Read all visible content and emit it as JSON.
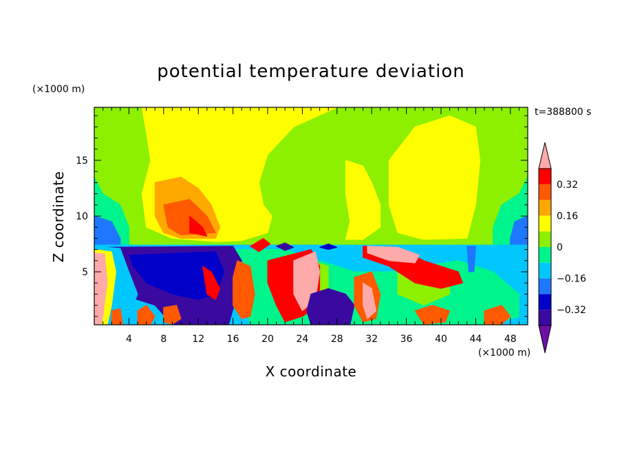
{
  "chart_data": {
    "type": "heatmap",
    "title": "potential temperature deviation",
    "xlabel": "X coordinate",
    "ylabel": "Z coordinate",
    "x_unit": "(×1000 m)",
    "y_unit": "(×1000 m)",
    "time_label": "t=388800 s",
    "xlim": [
      0,
      50
    ],
    "ylim": [
      0.25,
      19.75
    ],
    "x_ticks": [
      4,
      8,
      12,
      16,
      20,
      24,
      28,
      32,
      36,
      40,
      44,
      48
    ],
    "y_ticks": [
      5,
      10,
      15
    ],
    "levels": [
      -0.4,
      -0.32,
      -0.24,
      -0.16,
      -0.08,
      0,
      0.08,
      0.16,
      0.24,
      0.32,
      0.4
    ],
    "colorbar_labels": [
      "0.32",
      "0.16",
      "0",
      "−0.16",
      "−0.32"
    ],
    "colorbar_label_values": [
      0.32,
      0.16,
      0,
      -0.16,
      -0.32
    ],
    "colors": {
      "below": "#6e0fa8",
      "bands": [
        "#3a0aa0",
        "#0000c8",
        "#1e78ff",
        "#00c8ff",
        "#00f48c",
        "#8cf000",
        "#ffff00",
        "#ffa800",
        "#ff5a00",
        "#ff0000"
      ],
      "above": "#ffaaaa"
    },
    "regions": [
      {
        "value": 0.04,
        "points": [
          [
            0,
            19.75
          ],
          [
            50,
            19.75
          ],
          [
            50,
            7.3
          ],
          [
            0,
            7.3
          ]
        ]
      },
      {
        "value": 0.12,
        "points": [
          [
            5.5,
            19.75
          ],
          [
            28,
            19.75
          ],
          [
            23,
            18
          ],
          [
            20,
            15.5
          ],
          [
            19,
            13
          ],
          [
            19.5,
            11
          ],
          [
            20.5,
            10
          ],
          [
            20,
            8.5
          ],
          [
            17,
            7.8
          ],
          [
            14,
            7.7
          ],
          [
            9,
            8
          ],
          [
            6,
            9
          ],
          [
            5.5,
            12
          ],
          [
            6.5,
            15
          ],
          [
            6,
            17.5
          ]
        ]
      },
      {
        "value": 0.12,
        "points": [
          [
            29,
            15
          ],
          [
            31,
            14.5
          ],
          [
            32,
            13
          ],
          [
            33,
            11
          ],
          [
            33,
            9
          ],
          [
            31,
            7.9
          ],
          [
            29,
            7.9
          ],
          [
            29.5,
            9.5
          ],
          [
            29,
            12
          ]
        ]
      },
      {
        "value": 0.12,
        "points": [
          [
            34,
            15
          ],
          [
            37,
            18
          ],
          [
            41,
            19
          ],
          [
            44,
            18
          ],
          [
            44.5,
            15
          ],
          [
            44,
            11
          ],
          [
            43,
            8
          ],
          [
            38,
            7.9
          ],
          [
            35,
            8.5
          ],
          [
            34,
            11
          ]
        ]
      },
      {
        "value": 0.2,
        "points": [
          [
            7,
            13
          ],
          [
            10,
            13.5
          ],
          [
            12,
            12.5
          ],
          [
            13.5,
            11
          ],
          [
            14.5,
            9
          ],
          [
            14,
            8
          ],
          [
            10,
            8
          ],
          [
            8,
            8.5
          ],
          [
            7,
            10
          ]
        ]
      },
      {
        "value": 0.28,
        "points": [
          [
            8,
            11
          ],
          [
            11,
            11.5
          ],
          [
            13,
            10
          ],
          [
            14,
            8.5
          ],
          [
            10,
            8.3
          ],
          [
            8.5,
            9
          ]
        ]
      },
      {
        "value": 0.36,
        "points": [
          [
            11,
            10
          ],
          [
            12.5,
            9
          ],
          [
            13,
            8.2
          ],
          [
            11,
            8.5
          ]
        ]
      },
      {
        "value": -0.04,
        "points": [
          [
            0,
            13.5
          ],
          [
            1,
            12
          ],
          [
            3,
            11
          ],
          [
            4,
            9
          ],
          [
            4,
            7.4
          ],
          [
            0,
            7.4
          ]
        ]
      },
      {
        "value": -0.04,
        "points": [
          [
            50,
            13.5
          ],
          [
            49,
            12
          ],
          [
            47,
            11
          ],
          [
            46,
            9
          ],
          [
            46,
            7.4
          ],
          [
            50,
            7.4
          ]
        ]
      },
      {
        "value": -0.2,
        "points": [
          [
            0,
            10
          ],
          [
            2,
            9.5
          ],
          [
            3,
            8
          ],
          [
            3,
            7.4
          ],
          [
            0,
            7.4
          ]
        ]
      },
      {
        "value": -0.2,
        "points": [
          [
            50,
            10
          ],
          [
            48.5,
            9.5
          ],
          [
            48,
            8
          ],
          [
            48,
            7.4
          ],
          [
            50,
            7.4
          ]
        ]
      },
      {
        "value": -0.12,
        "points": [
          [
            0,
            7.4
          ],
          [
            50,
            7.4
          ],
          [
            50,
            0.25
          ],
          [
            0,
            0.25
          ]
        ]
      },
      {
        "value": -0.04,
        "points": [
          [
            16,
            7
          ],
          [
            22,
            7
          ],
          [
            26,
            6
          ],
          [
            30,
            5
          ],
          [
            34,
            5
          ],
          [
            38,
            5.5
          ],
          [
            42,
            6
          ],
          [
            46,
            5
          ],
          [
            49,
            3
          ],
          [
            49,
            1
          ],
          [
            46,
            0.25
          ],
          [
            18,
            0.25
          ],
          [
            17,
            3
          ]
        ]
      },
      {
        "value": 0.04,
        "points": [
          [
            22,
            6.5
          ],
          [
            25,
            6
          ],
          [
            27,
            5.5
          ],
          [
            27,
            3
          ],
          [
            25,
            1.5
          ],
          [
            22,
            1
          ],
          [
            21,
            3
          ]
        ]
      },
      {
        "value": 0.04,
        "points": [
          [
            35,
            5
          ],
          [
            38,
            5.5
          ],
          [
            41,
            5
          ],
          [
            41,
            3
          ],
          [
            38,
            2
          ],
          [
            35,
            3
          ]
        ]
      },
      {
        "value": -0.4,
        "points": [
          [
            0.5,
            7.2
          ],
          [
            16,
            7.3
          ],
          [
            17,
            6
          ],
          [
            16.5,
            3
          ],
          [
            15.5,
            0.25
          ],
          [
            9,
            0.25
          ],
          [
            7,
            2
          ],
          [
            3,
            3
          ],
          [
            2,
            5
          ],
          [
            1,
            6.5
          ]
        ]
      },
      {
        "value": -0.28,
        "points": [
          [
            4,
            6.5
          ],
          [
            14,
            6.8
          ],
          [
            15,
            5
          ],
          [
            14,
            3
          ],
          [
            12,
            2.5
          ],
          [
            9,
            3
          ],
          [
            6,
            4
          ],
          [
            4.5,
            5.5
          ]
        ]
      },
      {
        "value": -0.12,
        "points": [
          [
            0,
            7.3
          ],
          [
            3,
            7.1
          ],
          [
            4,
            5
          ],
          [
            5,
            3
          ],
          [
            4,
            1
          ],
          [
            3,
            0.25
          ],
          [
            0,
            0.25
          ]
        ]
      },
      {
        "value": 0.12,
        "points": [
          [
            0,
            7
          ],
          [
            2,
            6.8
          ],
          [
            2.5,
            5
          ],
          [
            2,
            2
          ],
          [
            1.5,
            0.25
          ],
          [
            0,
            0.25
          ]
        ]
      },
      {
        "value": 0.4,
        "points": [
          [
            0,
            6.7
          ],
          [
            1.2,
            6.6
          ],
          [
            1.5,
            4
          ],
          [
            1,
            1
          ],
          [
            0.8,
            0.25
          ],
          [
            0,
            0.25
          ]
        ]
      },
      {
        "value": 0.36,
        "points": [
          [
            12.5,
            5.5
          ],
          [
            13.5,
            5
          ],
          [
            14.5,
            3.5
          ],
          [
            14,
            2.5
          ],
          [
            13,
            3
          ]
        ]
      },
      {
        "value": 0.28,
        "points": [
          [
            16.5,
            6
          ],
          [
            18,
            5.5
          ],
          [
            18.5,
            3
          ],
          [
            18,
            1
          ],
          [
            17,
            0.8
          ],
          [
            16,
            2
          ],
          [
            16,
            4.5
          ]
        ]
      },
      {
        "value": 0.32,
        "points": [
          [
            20,
            6
          ],
          [
            25,
            7
          ],
          [
            26,
            5.5
          ],
          [
            26,
            2
          ],
          [
            24,
            1
          ],
          [
            22,
            0.5
          ],
          [
            21,
            2
          ],
          [
            20,
            4
          ]
        ]
      },
      {
        "value": 0.4,
        "points": [
          [
            23,
            6
          ],
          [
            25.5,
            6.8
          ],
          [
            26,
            5
          ],
          [
            25.5,
            2.5
          ],
          [
            24,
            1.5
          ],
          [
            23,
            3
          ]
        ]
      },
      {
        "value": -0.36,
        "points": [
          [
            25,
            3
          ],
          [
            27,
            3.5
          ],
          [
            29,
            3
          ],
          [
            30,
            2
          ],
          [
            29.5,
            0.25
          ],
          [
            25,
            0.25
          ],
          [
            24.5,
            1.5
          ]
        ]
      },
      {
        "value": 0.28,
        "points": [
          [
            30,
            4.5
          ],
          [
            32,
            5
          ],
          [
            33,
            3
          ],
          [
            32.5,
            0.8
          ],
          [
            31,
            0.5
          ],
          [
            30,
            2
          ]
        ]
      },
      {
        "value": 0.4,
        "points": [
          [
            31,
            4
          ],
          [
            32,
            3.5
          ],
          [
            32.5,
            1.5
          ],
          [
            31.5,
            0.8
          ],
          [
            31,
            2
          ]
        ]
      },
      {
        "value": 0.32,
        "points": [
          [
            31,
            7.3
          ],
          [
            35,
            7.2
          ],
          [
            38,
            6
          ],
          [
            42,
            5
          ],
          [
            42.5,
            4
          ],
          [
            40,
            3.5
          ],
          [
            37,
            4
          ],
          [
            34,
            5.5
          ],
          [
            31,
            6.3
          ]
        ]
      },
      {
        "value": 0.4,
        "points": [
          [
            31.5,
            7.3
          ],
          [
            35,
            7.2
          ],
          [
            37.5,
            6.5
          ],
          [
            37,
            5.8
          ],
          [
            34,
            6
          ],
          [
            31.5,
            6.7
          ]
        ]
      },
      {
        "value": 0.28,
        "points": [
          [
            37,
            1.5
          ],
          [
            39,
            2
          ],
          [
            41,
            1.5
          ],
          [
            40.5,
            0.5
          ],
          [
            38,
            0.3
          ]
        ]
      },
      {
        "value": -0.24,
        "points": [
          [
            43,
            7.3
          ],
          [
            44,
            7.3
          ],
          [
            43.8,
            5
          ],
          [
            43.2,
            5
          ]
        ]
      },
      {
        "value": 0.28,
        "points": [
          [
            2,
            1.5
          ],
          [
            3,
            1.7
          ],
          [
            3.3,
            0.3
          ],
          [
            2,
            0.3
          ]
        ]
      },
      {
        "value": 0.28,
        "points": [
          [
            5,
            1.5
          ],
          [
            6,
            2
          ],
          [
            7,
            1
          ],
          [
            6.5,
            0.3
          ],
          [
            5,
            0.3
          ]
        ]
      },
      {
        "value": 0.24,
        "points": [
          [
            8,
            1.8
          ],
          [
            9.5,
            2
          ],
          [
            10,
            0.8
          ],
          [
            9,
            0.3
          ],
          [
            8,
            0.5
          ]
        ]
      },
      {
        "value": 0.32,
        "points": [
          [
            18,
            7.3
          ],
          [
            19.5,
            8
          ],
          [
            20.3,
            7.5
          ],
          [
            19,
            6.8
          ]
        ]
      },
      {
        "value": -0.36,
        "points": [
          [
            21,
            7.3
          ],
          [
            22,
            7.6
          ],
          [
            23,
            7.2
          ],
          [
            22,
            6.9
          ]
        ]
      },
      {
        "value": -0.3,
        "points": [
          [
            26,
            7.2
          ],
          [
            27,
            7.5
          ],
          [
            28,
            7.2
          ],
          [
            27,
            7
          ]
        ]
      },
      {
        "value": 0.28,
        "points": [
          [
            45,
            1.5
          ],
          [
            47,
            2
          ],
          [
            48,
            1
          ],
          [
            47,
            0.3
          ],
          [
            45,
            0.3
          ]
        ]
      }
    ]
  }
}
